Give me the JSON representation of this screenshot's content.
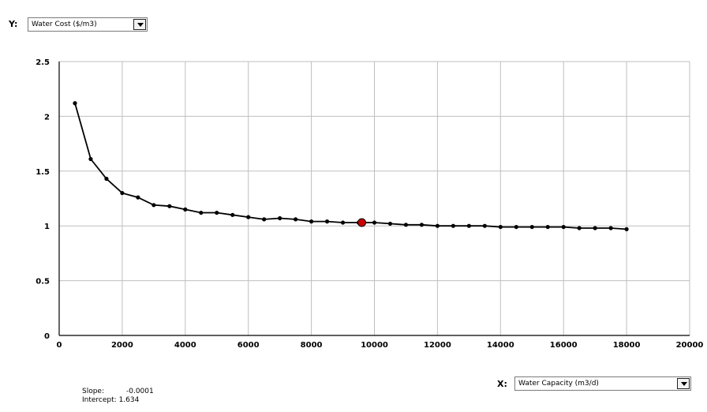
{
  "y_selector": {
    "label": "Y:",
    "value": "Water Cost ($/m3)",
    "icon": "chevron-down-icon"
  },
  "x_selector": {
    "label": "X:",
    "value": "Water Capacity (m3/d)",
    "icon": "chevron-down-icon"
  },
  "stats": {
    "slope_label": "Slope:",
    "slope_value": "-0.0001",
    "intercept_label": "Intercept:",
    "intercept_value": "1.634"
  },
  "colors": {
    "line": "#000000",
    "marker": "#000000",
    "highlight": "#cc0000",
    "grid": "#bfbfbf",
    "axis": "#000000"
  },
  "chart_data": {
    "type": "line",
    "xlim": [
      0,
      20000
    ],
    "ylim": [
      0,
      2.5
    ],
    "x_ticks": [
      0,
      2000,
      4000,
      6000,
      8000,
      10000,
      12000,
      14000,
      16000,
      18000,
      20000
    ],
    "x_tick_labels": [
      "0",
      "2000",
      "4000",
      "6000",
      "8000",
      "10000",
      "12000",
      "14000",
      "16000",
      "18000",
      "20000"
    ],
    "y_ticks": [
      0,
      0.5,
      1,
      1.5,
      2,
      2.5
    ],
    "y_tick_labels": [
      "0",
      "0.5",
      "1",
      "1.5",
      "2",
      "2.5"
    ],
    "grid": true,
    "series": [
      {
        "x": [
          500,
          1000,
          1500,
          2000,
          2500,
          3000,
          3500,
          4000,
          4500,
          5000,
          5500,
          6000,
          6500,
          7000,
          7500,
          8000,
          8500,
          9000,
          9500,
          10000,
          10500,
          11000,
          11500,
          12000,
          12500,
          13000,
          13500,
          14000,
          14500,
          15000,
          15500,
          16000,
          16500,
          17000,
          17500,
          18000
        ],
        "y": [
          2.12,
          1.61,
          1.43,
          1.3,
          1.26,
          1.19,
          1.18,
          1.15,
          1.12,
          1.12,
          1.1,
          1.08,
          1.06,
          1.07,
          1.06,
          1.04,
          1.04,
          1.03,
          1.03,
          1.03,
          1.02,
          1.01,
          1.01,
          1.0,
          1.0,
          1.0,
          1.0,
          0.99,
          0.99,
          0.99,
          0.99,
          0.99,
          0.98,
          0.98,
          0.98,
          0.97
        ]
      }
    ],
    "highlight_point": {
      "x": 9600,
      "y": 1.03
    }
  }
}
